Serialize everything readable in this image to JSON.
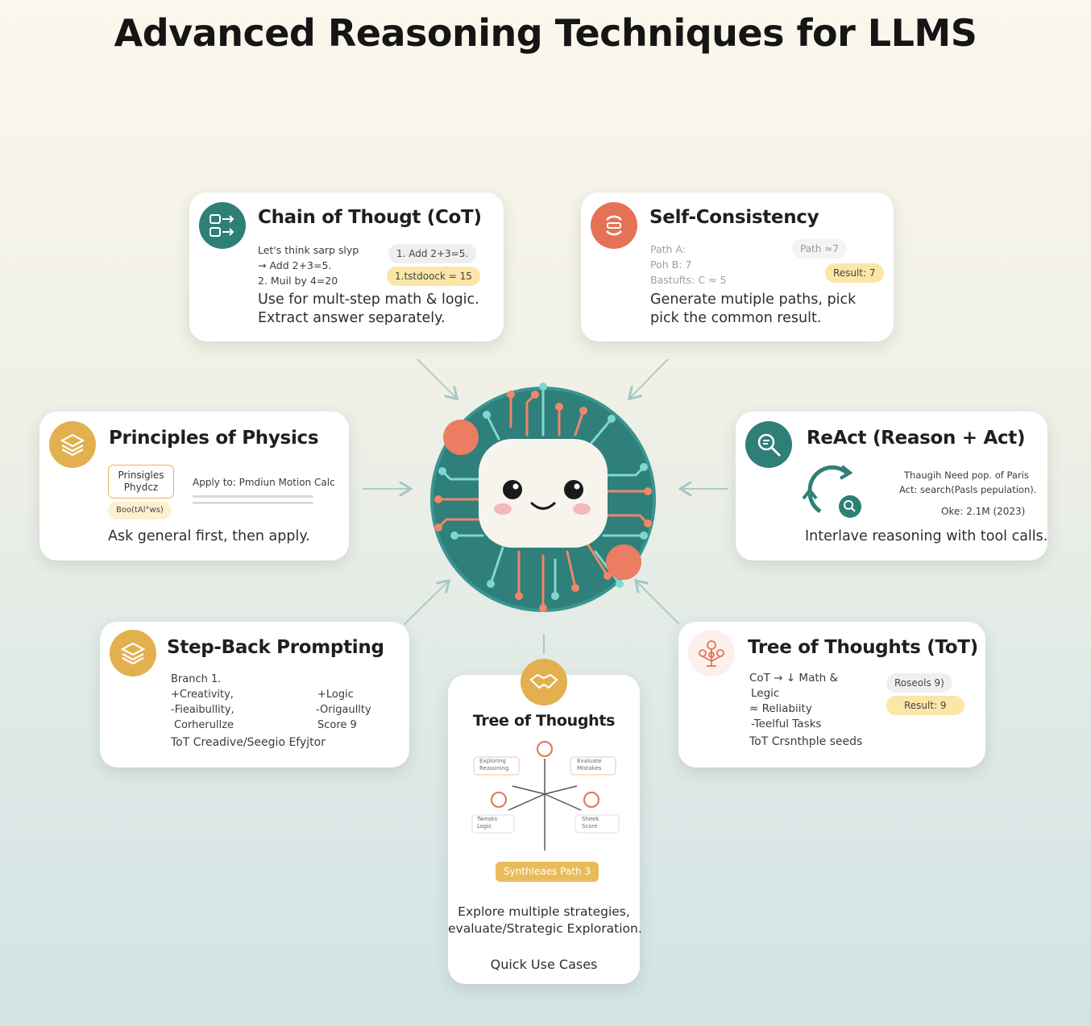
{
  "title": "Advanced Reasoning Techniques for LLMS",
  "colors": {
    "teal": "#2e7f78",
    "coral": "#e57256",
    "gold": "#e2b04e",
    "pale_yellow": "#fbe6a8"
  },
  "cards": {
    "cot": {
      "title": "Chain of Thougt (CoT)",
      "icon": "flow-steps-icon",
      "lines": [
        "Let's think sarp slyp",
        "→ Add 2+3=5.",
        "2. Muil by 4=20"
      ],
      "pills": [
        "1. Add 2+3=5.",
        "1.tstdoock = 15"
      ],
      "desc": [
        "Use for mult-step math & logic.",
        "Extract answer separately."
      ]
    },
    "self_consistency": {
      "title": "Self-Consistency",
      "icon": "cycle-paths-icon",
      "lines": [
        "Path A:",
        "Poh B: 7",
        "Bastufts: C ≈ 5"
      ],
      "pills": [
        "Path ≈7",
        "Result: 7"
      ],
      "desc": [
        "Generate mutiple paths, pick",
        "pick the common result."
      ]
    },
    "physics": {
      "title": "Principles of Physics",
      "icon": "stack-icon",
      "box_label": [
        "Prinsigles",
        "Phydcz"
      ],
      "tag": "Boo(tAl°ws)",
      "apply": "Apply to: Pmdiun Motion Calc",
      "desc": "Ask general first, then apply."
    },
    "react": {
      "title": "ReAct (Reason + Act)",
      "icon": "search-icon",
      "lines": [
        "Thaugih Need pop. of Paris",
        "Act: search(Pasls pepulation).",
        "Oke: 2.1M (2023)"
      ],
      "desc": "Interlave reasoning with tool calls."
    },
    "stepback": {
      "title": "Step-Back Prompting",
      "icon": "stack-icon",
      "left": [
        "Branch 1.",
        "+Creativity,",
        "-Fieaibullity,",
        "Corherullze"
      ],
      "right": [
        "+Logic",
        "-Origaullty",
        "Score 9"
      ],
      "footer": "ToT Creadive/Seegio Efyjtor"
    },
    "tot_center": {
      "title": "Tree of Thoughts",
      "icon": "handshake-icon",
      "leaves": [
        "Exploring",
        "Reasoning",
        "Evaluate",
        "Mistakes",
        "Tweaks",
        "Logic",
        "Sheek",
        "Score"
      ],
      "badge": "Synthleaes Path 3",
      "desc": [
        "Explore multiple strategies,",
        "evaluate/Strategic Exploration."
      ],
      "footer": "Quick Use Cases"
    },
    "tot_right": {
      "title": "Tree of Thoughts (ToT)",
      "icon": "tree-icon",
      "lines": [
        "CoT → ↓ Math &",
        "Legic",
        "≈ Reliabiity",
        "-Teelful Tasks",
        "ToT Crsnthple seeds"
      ],
      "pills": [
        "Roseols 9)",
        "Result: 9"
      ]
    }
  }
}
